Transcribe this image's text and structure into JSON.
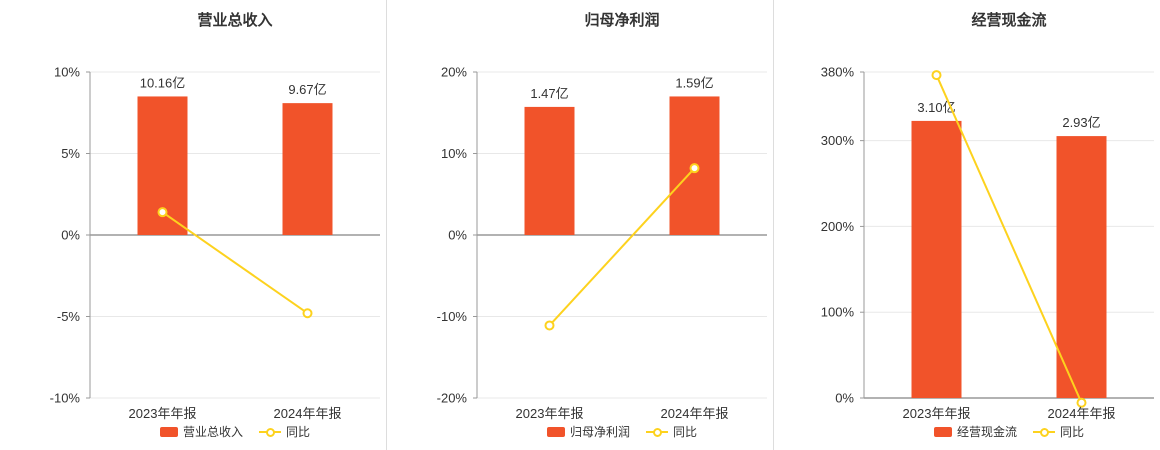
{
  "colors": {
    "bar": "#f1532a",
    "line": "#fdd21e",
    "grid": "#e8e8e8",
    "axis": "#999999",
    "axis_zero": "#666666",
    "text": "#333333",
    "divider": "#dddddd",
    "background": "#ffffff"
  },
  "chart_data": [
    {
      "type": "bar",
      "title": "营业总收入",
      "categories": [
        "2023年年报",
        "2024年年报"
      ],
      "series": [
        {
          "name": "营业总收入",
          "type": "bar",
          "unit": "亿",
          "values": [
            10.16,
            9.67
          ],
          "labels": [
            "10.16亿",
            "9.67亿"
          ]
        },
        {
          "name": "同比",
          "type": "line",
          "unit": "%",
          "values": [
            1.4,
            -4.8
          ]
        }
      ],
      "ylim": [
        -10,
        10
      ],
      "yticks": [
        {
          "label": "10%",
          "value": 10
        },
        {
          "label": "5%",
          "value": 5
        },
        {
          "label": "0%",
          "value": 0
        },
        {
          "label": "-5%",
          "value": -5
        },
        {
          "label": "-10%",
          "value": -10
        }
      ],
      "legend": [
        "营业总收入",
        "同比"
      ],
      "legend_position": "bottom",
      "grid": true
    },
    {
      "type": "bar",
      "title": "归母净利润",
      "categories": [
        "2023年年报",
        "2024年年报"
      ],
      "series": [
        {
          "name": "归母净利润",
          "type": "bar",
          "unit": "亿",
          "values": [
            1.47,
            1.59
          ],
          "labels": [
            "1.47亿",
            "1.59亿"
          ]
        },
        {
          "name": "同比",
          "type": "line",
          "unit": "%",
          "values": [
            -11.1,
            8.2
          ]
        }
      ],
      "ylim": [
        -20,
        20
      ],
      "yticks": [
        {
          "label": "20%",
          "value": 20
        },
        {
          "label": "10%",
          "value": 10
        },
        {
          "label": "0%",
          "value": 0
        },
        {
          "label": "-10%",
          "value": -10
        },
        {
          "label": "-20%",
          "value": -20
        }
      ],
      "legend": [
        "归母净利润",
        "同比"
      ],
      "legend_position": "bottom",
      "grid": true
    },
    {
      "type": "bar",
      "title": "经营现金流",
      "categories": [
        "2023年年报",
        "2024年年报"
      ],
      "series": [
        {
          "name": "经营现金流",
          "type": "bar",
          "unit": "亿",
          "values": [
            3.1,
            2.93
          ],
          "labels": [
            "3.10亿",
            "2.93亿"
          ]
        },
        {
          "name": "同比",
          "type": "line",
          "unit": "%",
          "values": [
            376.4,
            -5.5
          ]
        }
      ],
      "ylim": [
        0,
        380
      ],
      "yticks": [
        {
          "label": "380%",
          "value": 380
        },
        {
          "label": "300%",
          "value": 300
        },
        {
          "label": "200%",
          "value": 200
        },
        {
          "label": "100%",
          "value": 100
        },
        {
          "label": "0%",
          "value": 0
        }
      ],
      "legend": [
        "经营现金流",
        "同比"
      ],
      "legend_position": "bottom",
      "grid": true
    }
  ]
}
